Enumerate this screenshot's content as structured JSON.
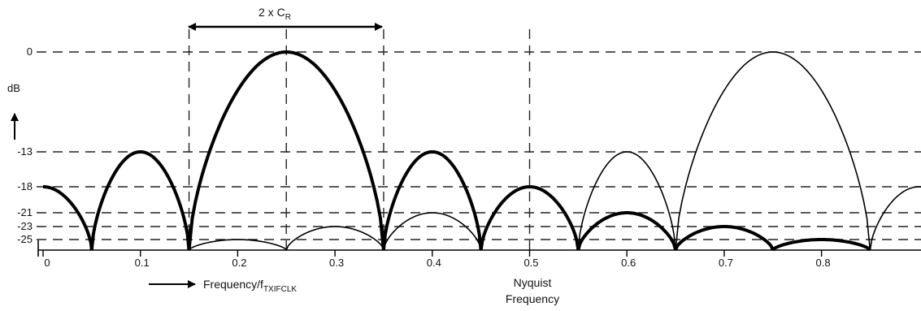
{
  "chart_data": {
    "type": "line",
    "ylabel": "dB",
    "xlabel_prefix": "Frequency/f",
    "xlabel_subscript": "TXIFCLK",
    "span_label_prefix": "2 x C",
    "span_label_subscript": "R",
    "nyquist_label": [
      "Nyquist",
      "Frequency"
    ],
    "xlim": [
      0,
      0.89
    ],
    "ylim": [
      -25,
      0
    ],
    "y_reference_levels": [
      0,
      -13,
      -18,
      -21,
      -23,
      -25
    ],
    "y_ticks": [
      "0",
      "-13",
      "-18",
      "-21",
      "-23",
      "-25"
    ],
    "x_ticks": [
      "0",
      "0.1",
      "0.2",
      "0.3",
      "0.4",
      "0.5",
      "0.6",
      "0.7",
      "0.8"
    ],
    "vertical_markers_x": [
      0.15,
      0.25,
      0.35,
      0.5
    ],
    "span": [
      0.15,
      0.35
    ],
    "series": [
      {
        "style": "thick",
        "lobes": [
          {
            "x": [
              0,
              0.05
            ],
            "peak": -18,
            "half": true
          },
          {
            "x": [
              0.05,
              0.15
            ],
            "peak": -13
          },
          {
            "x": [
              0.15,
              0.35
            ],
            "peak": 0
          },
          {
            "x": [
              0.35,
              0.45
            ],
            "peak": -13
          },
          {
            "x": [
              0.45,
              0.55
            ],
            "peak": -18
          },
          {
            "x": [
              0.55,
              0.65
            ],
            "peak": -21
          },
          {
            "x": [
              0.65,
              0.75
            ],
            "peak": -23
          },
          {
            "x": [
              0.75,
              0.85
            ],
            "peak": -25
          }
        ]
      },
      {
        "style": "thin",
        "lobes": [
          {
            "x": [
              0.15,
              0.25
            ],
            "peak": -25
          },
          {
            "x": [
              0.25,
              0.35
            ],
            "peak": -23
          },
          {
            "x": [
              0.35,
              0.45
            ],
            "peak": -21
          },
          {
            "x": [
              0.55,
              0.65
            ],
            "peak": -13
          },
          {
            "x": [
              0.65,
              0.85
            ],
            "peak": 0
          },
          {
            "x": [
              0.85,
              0.95
            ],
            "peak": -18
          }
        ]
      }
    ]
  }
}
